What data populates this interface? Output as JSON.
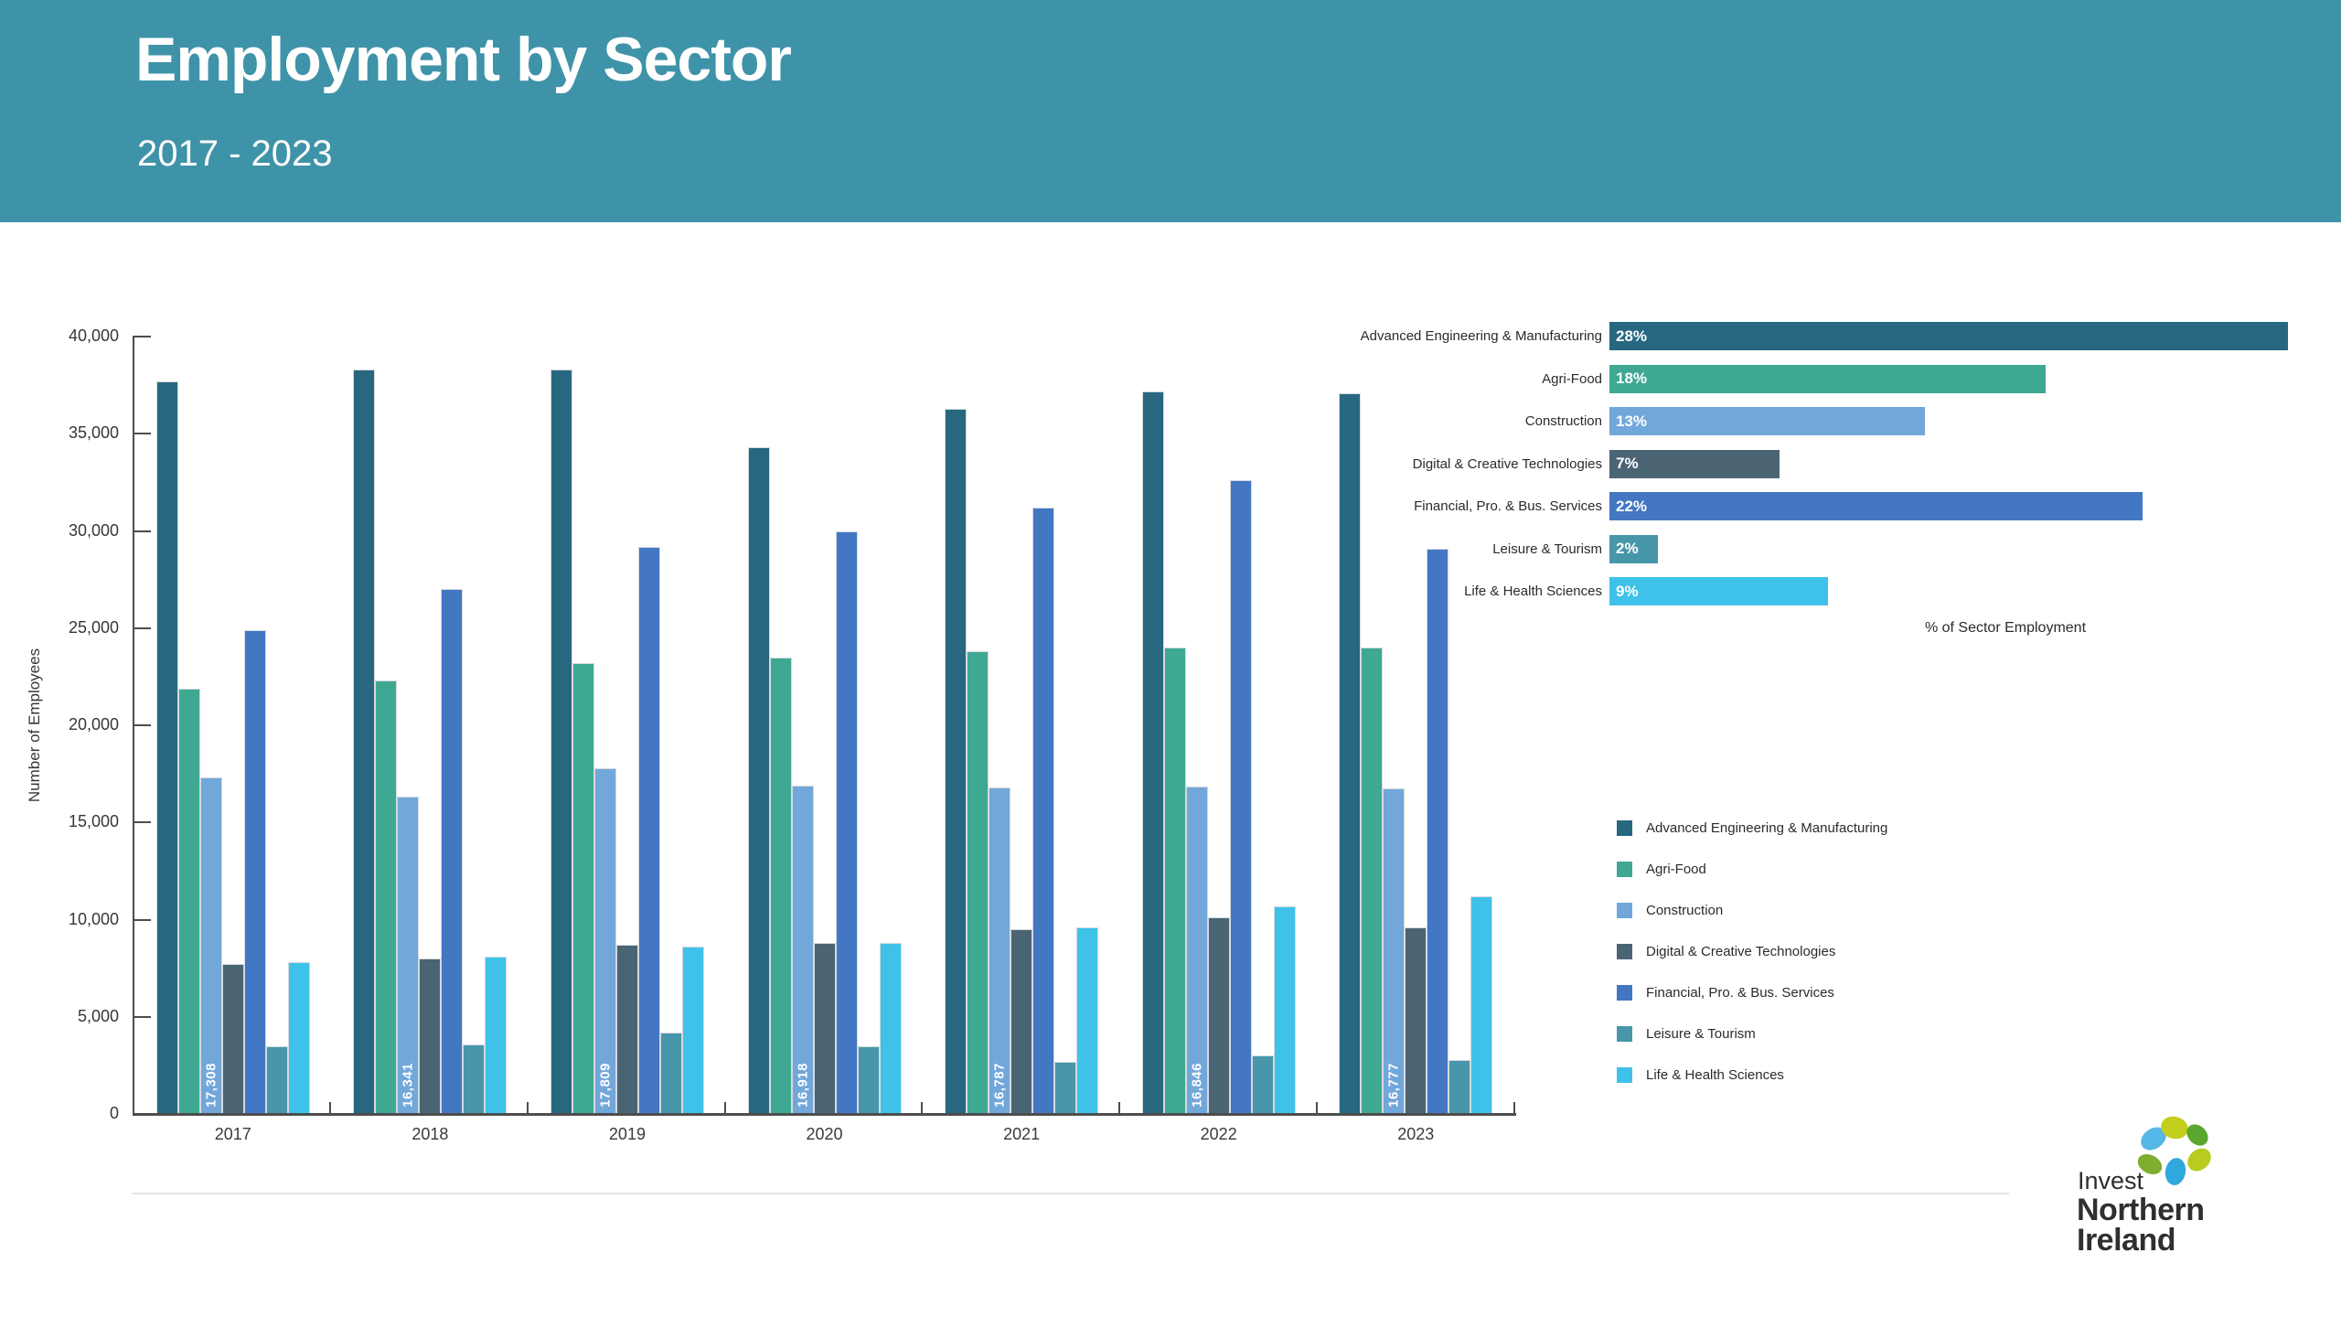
{
  "header": {
    "title": "Employment by Sector",
    "subtitle": "2017 - 2023"
  },
  "chart_data": [
    {
      "type": "bar",
      "title": "Employment by Sector 2017 - 2023",
      "ylabel": "Number of Employees",
      "ylim": [
        0,
        40000
      ],
      "ytick_step": 5000,
      "yticks": [
        "0",
        "5,000",
        "10,000",
        "15,000",
        "20,000",
        "25,000",
        "30,000",
        "35,000",
        "40,000"
      ],
      "grid": false,
      "categories": [
        "2017",
        "2018",
        "2019",
        "2020",
        "2021",
        "2022",
        "2023"
      ],
      "series": [
        {
          "name": "Advanced Engineering & Manufacturing",
          "color": "#276780",
          "values": [
            37700,
            38300,
            38300,
            34300,
            36300,
            37200,
            37100
          ]
        },
        {
          "name": "Agri-Food",
          "color": "#3fa893",
          "values": [
            21900,
            22300,
            23200,
            23500,
            23800,
            24000,
            24000
          ]
        },
        {
          "name": "Construction",
          "color": "#72a7da",
          "values": [
            17308,
            16341,
            17809,
            16918,
            16787,
            16846,
            16777
          ]
        },
        {
          "name": "Digital & Creative Technologies",
          "color": "#4a6474",
          "values": [
            7700,
            8000,
            8700,
            8800,
            9500,
            10100,
            9600
          ]
        },
        {
          "name": "Financial, Pro. & Bus. Services",
          "color": "#4377c4",
          "values": [
            24900,
            27000,
            29200,
            30000,
            31200,
            32600,
            29100
          ]
        },
        {
          "name": "Leisure & Tourism",
          "color": "#4796a9",
          "values": [
            3500,
            3600,
            4200,
            3500,
            2700,
            3000,
            2800
          ]
        },
        {
          "name": "Life & Health Sciences",
          "color": "#3fc2ea",
          "values": [
            7800,
            8100,
            8600,
            8800,
            9600,
            10700,
            11200
          ]
        }
      ],
      "bar_value_labels": {
        "series": "Construction",
        "labels": [
          "17,308",
          "16,341",
          "17,809",
          "16,918",
          "16,787",
          "16,846",
          "16,777"
        ]
      },
      "legend_position": "bottom-right"
    },
    {
      "type": "bar",
      "orientation": "horizontal",
      "xlabel": "% of Sector Employment",
      "categories": [
        "Advanced Engineering & Manufacturing",
        "Agri-Food",
        "Construction",
        "Digital & Creative Technologies",
        "Financial, Pro. & Bus. Services",
        "Leisure & Tourism",
        "Life & Health Sciences"
      ],
      "values": [
        28,
        18,
        13,
        7,
        22,
        2,
        9
      ],
      "labels": [
        "28%",
        "18%",
        "13%",
        "7%",
        "22%",
        "2%",
        "9%"
      ],
      "colors": [
        "#276780",
        "#3fa893",
        "#72a7da",
        "#4a6474",
        "#4377c4",
        "#4796a9",
        "#3fc2ea"
      ]
    }
  ],
  "colors": {
    "header_bg": "#3f93a8",
    "axis": "#4d4d4d",
    "text": "#2b2b2b"
  },
  "logo": {
    "line1": "Invest",
    "line2": "Northern",
    "line3": "Ireland",
    "petal_colors": [
      "#55b7e5",
      "#c3cf1c",
      "#5aa72f",
      "#7fad2f",
      "#2fa8dd",
      "#b8cc1f"
    ]
  }
}
